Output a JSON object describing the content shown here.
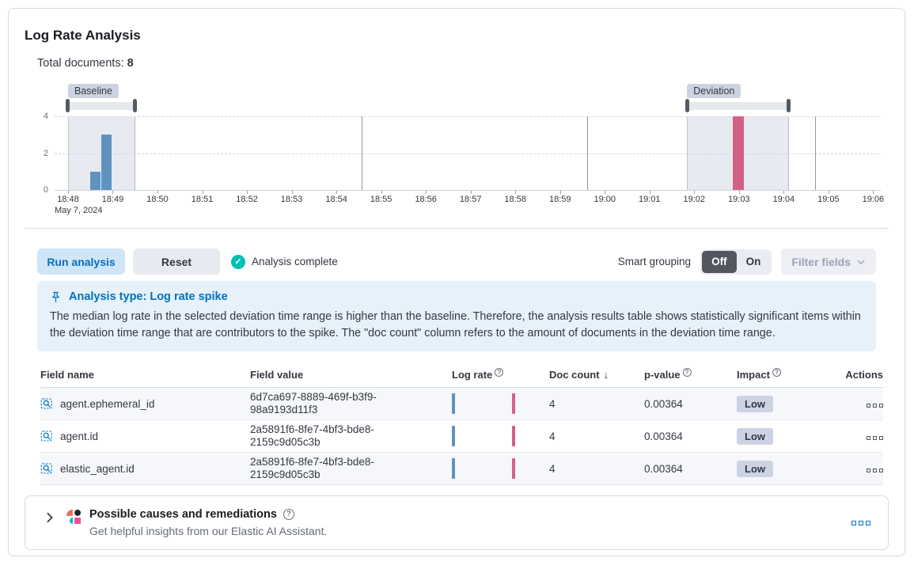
{
  "header": {
    "title": "Log Rate Analysis",
    "total_documents_label": "Total documents:",
    "total_documents_value": "8"
  },
  "colors": {
    "baseline_bar": "#6092c0",
    "deviation_bar": "#d36086",
    "accent_blue": "#0071c2",
    "success_green": "#00bfb3"
  },
  "chart_data": {
    "type": "bar",
    "title": "Document count histogram with baseline and deviation time range selections",
    "domain": [
      -0.3,
      18.17
    ],
    "ylim": [
      0,
      4
    ],
    "yticks": [
      0,
      2,
      4
    ],
    "vertical_gridlines": [
      6.57,
      11.61,
      16.71
    ],
    "bar_width_minutes": 0.25,
    "time_axis": {
      "labels": [
        "18:48",
        "18:49",
        "18:50",
        "18:51",
        "18:52",
        "18:53",
        "18:54",
        "18:55",
        "18:56",
        "18:57",
        "18:58",
        "18:59",
        "19:00",
        "19:01",
        "19:02",
        "19:03",
        "19:04",
        "19:05",
        "19:06"
      ],
      "date_label": "May 7, 2024"
    },
    "series": [
      {
        "name": "baseline-doc-count",
        "color": "#6092c0",
        "points": [
          {
            "minute": 0.5,
            "value": 1
          },
          {
            "minute": 0.75,
            "value": 3
          }
        ]
      },
      {
        "name": "deviation-doc-count",
        "color": "#d36086",
        "points": [
          {
            "minute": 14.87,
            "value": 4
          }
        ]
      }
    ],
    "windows": [
      {
        "label": "Baseline",
        "from_minute": 0.0,
        "to_minute": 1.5
      },
      {
        "label": "Deviation",
        "from_minute": 13.84,
        "to_minute": 16.11
      }
    ]
  },
  "toolbar": {
    "run_analysis": "Run analysis",
    "reset": "Reset",
    "analysis_complete": "Analysis complete",
    "smart_grouping": "Smart grouping",
    "off": "Off",
    "on": "On",
    "filter_fields": "Filter fields"
  },
  "callout": {
    "title": "Analysis type: Log rate spike",
    "body": "The median log rate in the selected deviation time range is higher than the baseline. Therefore, the analysis results table shows statistically significant items within the deviation time range that are contributors to the spike. The \"doc count\" column refers to the amount of documents in the deviation time range."
  },
  "table": {
    "columns": [
      {
        "label": "Field name"
      },
      {
        "label": "Field value"
      },
      {
        "label": "Log rate",
        "info": true
      },
      {
        "label": "Doc count",
        "sorted": "desc"
      },
      {
        "label": "p-value",
        "info": true
      },
      {
        "label": "Impact",
        "info": true
      },
      {
        "label": "Actions"
      }
    ],
    "sort_arrow": "↓",
    "rows": [
      {
        "field_name": "agent.ephemeral_id",
        "field_value": "6d7ca697-8889-469f-b3f9-98a9193d11f3",
        "doc_count": "4",
        "p_value": "0.00364",
        "impact": "Low"
      },
      {
        "field_name": "agent.id",
        "field_value": "2a5891f6-8fe7-4bf3-bde8-2159c9d05c3b",
        "doc_count": "4",
        "p_value": "0.00364",
        "impact": "Low"
      },
      {
        "field_name": "elastic_agent.id",
        "field_value": "2a5891f6-8fe7-4bf3-bde8-2159c9d05c3b",
        "doc_count": "4",
        "p_value": "0.00364",
        "impact": "Low"
      }
    ]
  },
  "footer": {
    "title": "Possible causes and remediations",
    "subtitle": "Get helpful insights from our Elastic AI Assistant."
  }
}
